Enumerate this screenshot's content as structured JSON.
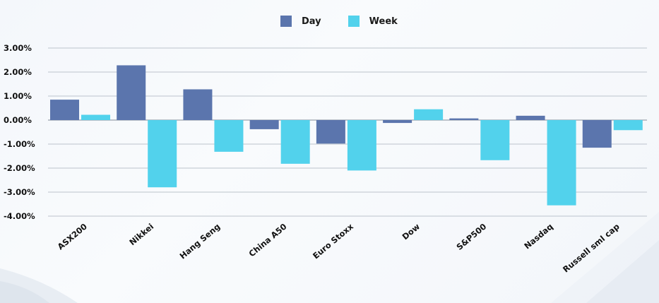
{
  "colors": {
    "day": "#5b75ad",
    "week": "#52d2ec",
    "grid": "#bcc3cc",
    "zero_line": "#9aa2ad"
  },
  "chart_data": {
    "type": "bar",
    "title": "",
    "xlabel": "",
    "ylabel": "",
    "categories": [
      "ASX200",
      "Nikkei",
      "Hang Seng",
      "China A50",
      "Euro Stoxx",
      "Dow",
      "S&P500",
      "Nasdaq",
      "Russell sml cap"
    ],
    "series": [
      {
        "name": "Day",
        "values": [
          0.85,
          2.28,
          1.28,
          -0.38,
          -0.98,
          -0.12,
          0.07,
          0.18,
          -1.15
        ]
      },
      {
        "name": "Week",
        "values": [
          0.22,
          -2.8,
          -1.32,
          -1.82,
          -2.1,
          0.45,
          -1.67,
          -3.55,
          -0.42
        ]
      }
    ],
    "ylim": [
      -4,
      3
    ],
    "yticks": [
      "3.00%",
      "2.00%",
      "1.00%",
      "0.00%",
      "-1.00%",
      "-2.00%",
      "-3.00%",
      "-4.00%"
    ],
    "ytick_values": [
      3,
      2,
      1,
      0,
      -1,
      -2,
      -3,
      -4
    ],
    "grid": true,
    "legend_position": "top-center"
  }
}
